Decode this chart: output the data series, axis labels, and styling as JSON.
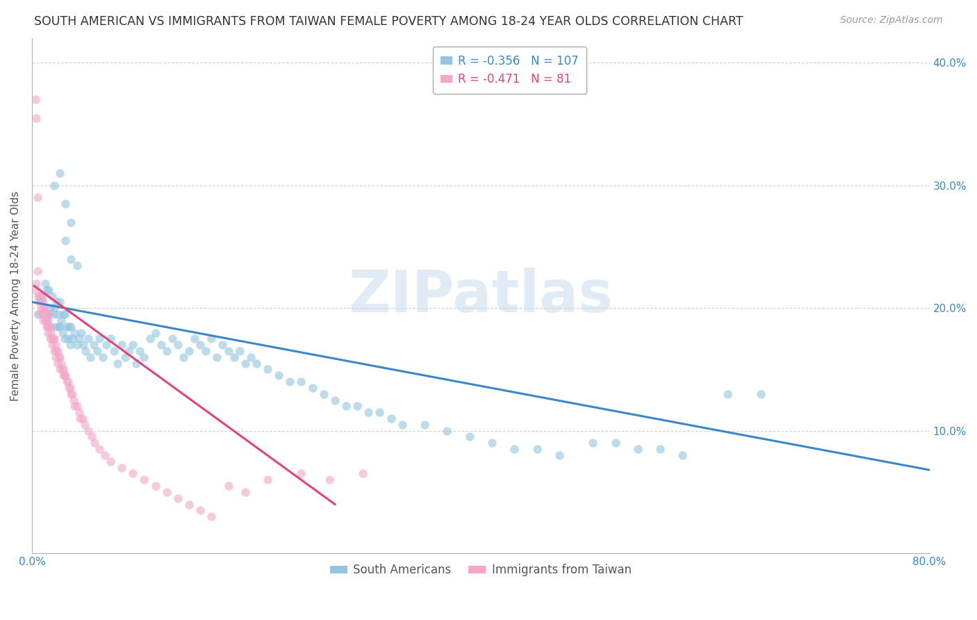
{
  "title": "SOUTH AMERICAN VS IMMIGRANTS FROM TAIWAN FEMALE POVERTY AMONG 18-24 YEAR OLDS CORRELATION CHART",
  "source": "Source: ZipAtlas.com",
  "ylabel": "Female Poverty Among 18-24 Year Olds",
  "xlim": [
    0.0,
    0.8
  ],
  "ylim": [
    0.0,
    0.42
  ],
  "xtick_positions": [
    0.0,
    0.1,
    0.2,
    0.3,
    0.4,
    0.5,
    0.6,
    0.7,
    0.8
  ],
  "xticklabels": [
    "0.0%",
    "",
    "",
    "",
    "",
    "",
    "",
    "",
    "80.0%"
  ],
  "ytick_positions": [
    0.0,
    0.1,
    0.2,
    0.3,
    0.4
  ],
  "yticklabels": [
    "",
    "10.0%",
    "20.0%",
    "30.0%",
    "40.0%"
  ],
  "blue_R": "-0.356",
  "blue_N": "107",
  "pink_R": "-0.471",
  "pink_N": "81",
  "blue_color": "#92c5de",
  "pink_color": "#f4a6c8",
  "blue_line_color": "#3a87c8",
  "pink_line_color": "#e8417a",
  "watermark_text": "ZIPatlas",
  "legend_label_blue": "South Americans",
  "legend_label_pink": "Immigrants from Taiwan",
  "blue_trendline_x": [
    0.0,
    0.8
  ],
  "blue_trendline_y": [
    0.205,
    0.068
  ],
  "pink_trendline_x": [
    0.002,
    0.27
  ],
  "pink_trendline_y": [
    0.218,
    0.04
  ],
  "blue_scatter_x": [
    0.005,
    0.008,
    0.01,
    0.012,
    0.013,
    0.014,
    0.015,
    0.015,
    0.016,
    0.017,
    0.018,
    0.019,
    0.02,
    0.021,
    0.022,
    0.023,
    0.024,
    0.025,
    0.025,
    0.026,
    0.027,
    0.028,
    0.029,
    0.03,
    0.031,
    0.032,
    0.033,
    0.034,
    0.035,
    0.036,
    0.038,
    0.04,
    0.042,
    0.044,
    0.046,
    0.048,
    0.05,
    0.052,
    0.055,
    0.058,
    0.06,
    0.063,
    0.066,
    0.07,
    0.073,
    0.076,
    0.08,
    0.083,
    0.086,
    0.09,
    0.093,
    0.096,
    0.1,
    0.105,
    0.11,
    0.115,
    0.12,
    0.125,
    0.13,
    0.135,
    0.14,
    0.145,
    0.15,
    0.155,
    0.16,
    0.165,
    0.17,
    0.175,
    0.18,
    0.185,
    0.19,
    0.195,
    0.2,
    0.21,
    0.22,
    0.23,
    0.24,
    0.25,
    0.26,
    0.27,
    0.28,
    0.29,
    0.3,
    0.31,
    0.32,
    0.33,
    0.35,
    0.37,
    0.39,
    0.41,
    0.43,
    0.45,
    0.47,
    0.5,
    0.52,
    0.54,
    0.56,
    0.58,
    0.62,
    0.65,
    0.02,
    0.025,
    0.03,
    0.035,
    0.03,
    0.035,
    0.04
  ],
  "blue_scatter_y": [
    0.195,
    0.21,
    0.205,
    0.22,
    0.215,
    0.19,
    0.215,
    0.195,
    0.2,
    0.185,
    0.21,
    0.195,
    0.2,
    0.185,
    0.205,
    0.195,
    0.185,
    0.205,
    0.185,
    0.19,
    0.18,
    0.195,
    0.175,
    0.195,
    0.185,
    0.175,
    0.185,
    0.17,
    0.185,
    0.175,
    0.18,
    0.17,
    0.175,
    0.18,
    0.17,
    0.165,
    0.175,
    0.16,
    0.17,
    0.165,
    0.175,
    0.16,
    0.17,
    0.175,
    0.165,
    0.155,
    0.17,
    0.16,
    0.165,
    0.17,
    0.155,
    0.165,
    0.16,
    0.175,
    0.18,
    0.17,
    0.165,
    0.175,
    0.17,
    0.16,
    0.165,
    0.175,
    0.17,
    0.165,
    0.175,
    0.16,
    0.17,
    0.165,
    0.16,
    0.165,
    0.155,
    0.16,
    0.155,
    0.15,
    0.145,
    0.14,
    0.14,
    0.135,
    0.13,
    0.125,
    0.12,
    0.12,
    0.115,
    0.115,
    0.11,
    0.105,
    0.105,
    0.1,
    0.095,
    0.09,
    0.085,
    0.085,
    0.08,
    0.09,
    0.09,
    0.085,
    0.085,
    0.08,
    0.13,
    0.13,
    0.3,
    0.31,
    0.285,
    0.27,
    0.255,
    0.24,
    0.235
  ],
  "pink_scatter_x": [
    0.003,
    0.004,
    0.005,
    0.005,
    0.006,
    0.007,
    0.007,
    0.008,
    0.008,
    0.009,
    0.01,
    0.01,
    0.01,
    0.011,
    0.012,
    0.012,
    0.013,
    0.013,
    0.014,
    0.014,
    0.015,
    0.015,
    0.016,
    0.016,
    0.017,
    0.018,
    0.018,
    0.019,
    0.02,
    0.02,
    0.021,
    0.021,
    0.022,
    0.023,
    0.023,
    0.024,
    0.025,
    0.025,
    0.026,
    0.027,
    0.028,
    0.028,
    0.029,
    0.03,
    0.031,
    0.032,
    0.033,
    0.034,
    0.035,
    0.036,
    0.037,
    0.038,
    0.04,
    0.042,
    0.043,
    0.045,
    0.047,
    0.05,
    0.053,
    0.056,
    0.06,
    0.065,
    0.07,
    0.08,
    0.09,
    0.1,
    0.11,
    0.12,
    0.13,
    0.14,
    0.15,
    0.16,
    0.175,
    0.19,
    0.21,
    0.24,
    0.265,
    0.295,
    0.003,
    0.004,
    0.005
  ],
  "pink_scatter_y": [
    0.215,
    0.22,
    0.23,
    0.21,
    0.205,
    0.21,
    0.195,
    0.205,
    0.2,
    0.195,
    0.21,
    0.2,
    0.19,
    0.2,
    0.19,
    0.195,
    0.185,
    0.19,
    0.185,
    0.18,
    0.195,
    0.185,
    0.185,
    0.175,
    0.18,
    0.175,
    0.17,
    0.175,
    0.175,
    0.165,
    0.17,
    0.16,
    0.165,
    0.165,
    0.155,
    0.16,
    0.16,
    0.15,
    0.155,
    0.15,
    0.15,
    0.145,
    0.145,
    0.145,
    0.14,
    0.14,
    0.135,
    0.135,
    0.13,
    0.13,
    0.125,
    0.12,
    0.12,
    0.115,
    0.11,
    0.11,
    0.105,
    0.1,
    0.095,
    0.09,
    0.085,
    0.08,
    0.075,
    0.07,
    0.065,
    0.06,
    0.055,
    0.05,
    0.045,
    0.04,
    0.035,
    0.03,
    0.055,
    0.05,
    0.06,
    0.065,
    0.06,
    0.065,
    0.37,
    0.355,
    0.29
  ],
  "background_color": "#ffffff",
  "title_fontsize": 12.5,
  "source_fontsize": 10,
  "axis_label_fontsize": 11,
  "tick_fontsize": 11,
  "legend_fontsize": 12,
  "watermark_fontsize": 60,
  "watermark_color": "#c8dcf0",
  "watermark_alpha": 0.55,
  "scatter_size": 80,
  "scatter_alpha": 0.6,
  "grid_color": "#d0d0d0",
  "spine_color": "#b0b0b0"
}
